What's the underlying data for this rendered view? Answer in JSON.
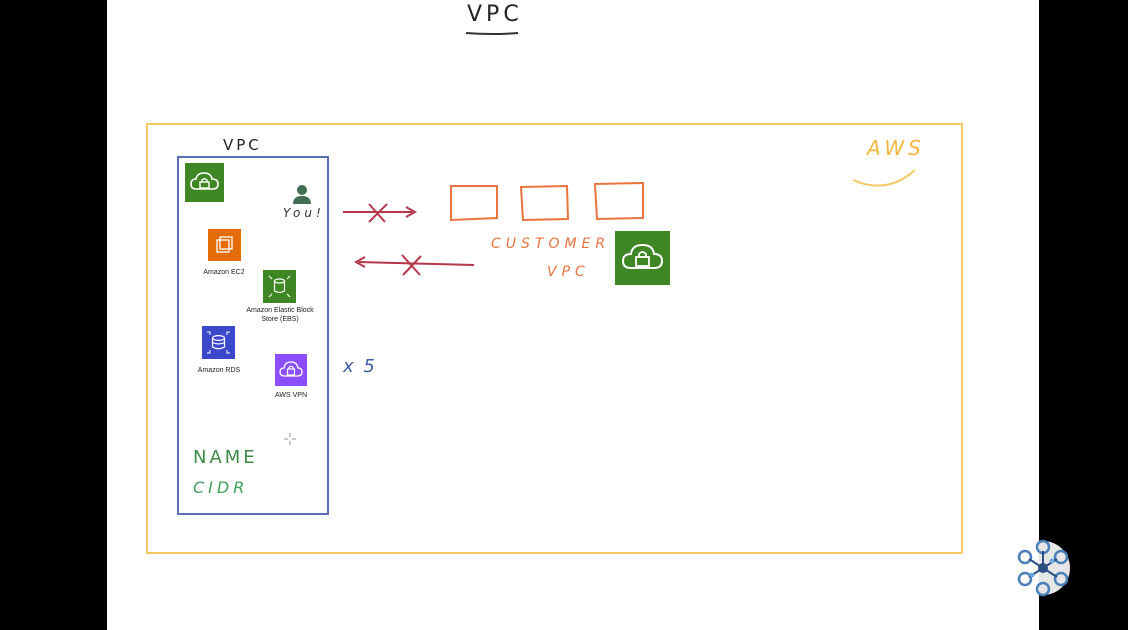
{
  "title": "VPC",
  "aws_label": "AWS",
  "vpc_box_label": "VPC",
  "you_label": "You!",
  "customer_label_line1": "CUSTOMER",
  "customer_label_line2": "VPC",
  "multiplier_label": "x 5",
  "name_label": "NAME",
  "cidr_label": "CIDR",
  "services": [
    {
      "label": "Amazon EC2",
      "icon": "ec2-icon",
      "color": "#e36c09"
    },
    {
      "label": "Amazon Elastic Block Store (EBS)",
      "icon": "ebs-icon",
      "color": "#3f8624"
    },
    {
      "label": "Amazon RDS",
      "icon": "rds-icon",
      "color": "#3b48cc"
    },
    {
      "label": "AWS VPN",
      "icon": "vpn-icon",
      "color": "#8c4fff"
    }
  ],
  "colors": {
    "aws_border": "#f3c964",
    "vpc_border": "#5a6fb5",
    "arrow": "#b5374c",
    "customer": "#e8753f",
    "vpc_green": "#3f8624",
    "name_text": "#3c8a46",
    "cidr_text": "#3fa05a",
    "multiplier_text": "#3e5aa8"
  }
}
